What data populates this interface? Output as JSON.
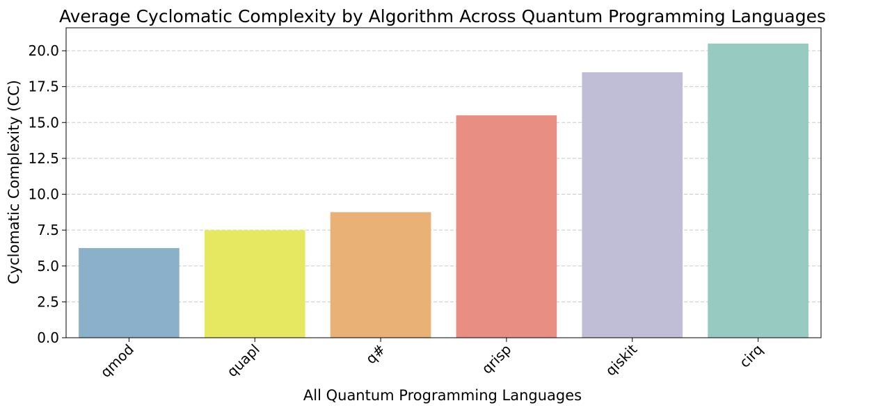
{
  "chart_data": {
    "type": "bar",
    "title": "Average Cyclomatic Complexity by Algorithm Across Quantum Programming Languages",
    "xlabel": "All Quantum Programming Languages",
    "ylabel": "Cyclomatic Complexity (CC)",
    "categories": [
      "qmod",
      "quapl",
      "q#",
      "qrisp",
      "qiskit",
      "cirq"
    ],
    "values": [
      6.25,
      7.5,
      8.75,
      15.5,
      18.5,
      20.5
    ],
    "colors": [
      "#8BB0CA",
      "#E6E862",
      "#E9B176",
      "#E88E82",
      "#C0BDD6",
      "#97CAC0"
    ],
    "ylim": [
      0,
      21.6
    ],
    "yticks": [
      0,
      2.5,
      5,
      7.5,
      10,
      12.5,
      15,
      17.5,
      20
    ],
    "ytick_labels": [
      "0.0",
      "2.5",
      "5.0",
      "7.5",
      "10.0",
      "12.5",
      "15.0",
      "17.5",
      "20.0"
    ],
    "grid": "y-dashed",
    "xtick_rotation": "45deg"
  }
}
